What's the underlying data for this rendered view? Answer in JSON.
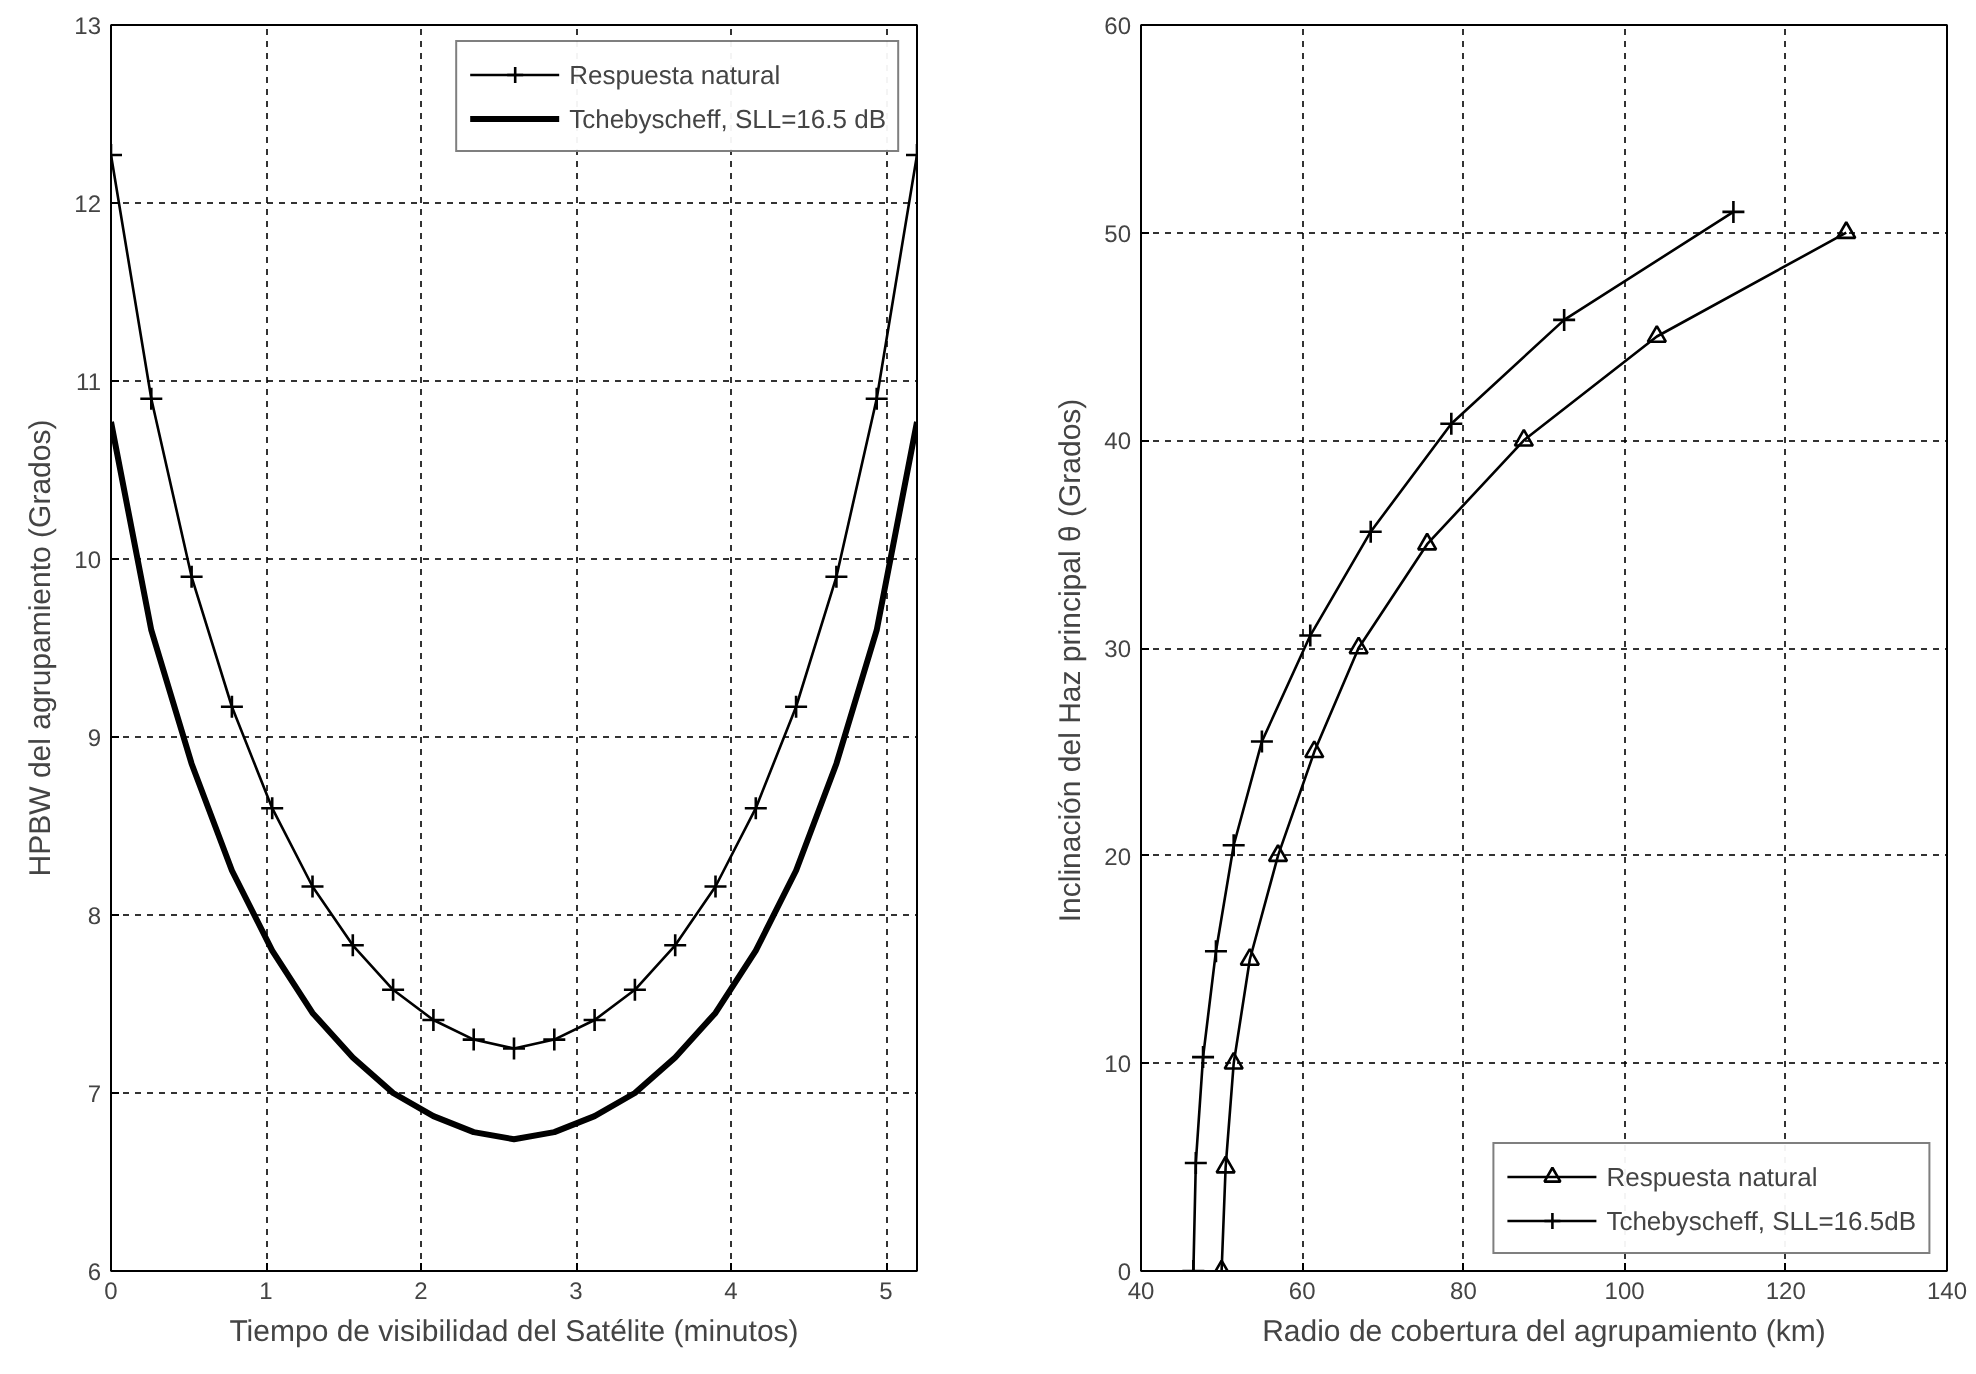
{
  "chart_data": [
    {
      "type": "line",
      "xlabel": "Tiempo de visibilidad del Satélite (minutos)",
      "ylabel": "HPBW del agrupamiento (Grados)",
      "xlim": [
        0,
        5.2
      ],
      "ylim": [
        6,
        13
      ],
      "xticks": [
        0,
        1,
        2,
        3,
        4,
        5
      ],
      "yticks": [
        6,
        7,
        8,
        9,
        10,
        11,
        12,
        13
      ],
      "grid": true,
      "legend": "top right",
      "x": [
        0,
        0.26,
        0.52,
        0.78,
        1.04,
        1.3,
        1.56,
        1.82,
        2.08,
        2.34,
        2.6,
        2.86,
        3.12,
        3.38,
        3.64,
        3.9,
        4.16,
        4.42,
        4.68,
        4.94,
        5.2
      ],
      "series": [
        {
          "name": "Respuesta natural",
          "color": "#000000",
          "marker": "cross",
          "values": [
            12.27,
            10.9,
            9.9,
            9.17,
            8.6,
            8.16,
            7.83,
            7.58,
            7.41,
            7.3,
            7.25,
            7.3,
            7.41,
            7.58,
            7.83,
            8.16,
            8.6,
            9.17,
            9.9,
            10.9,
            12.27
          ]
        },
        {
          "name": "Tchebyscheff, SLL=16.5 dB",
          "color": "#000000",
          "marker": "none",
          "values": [
            10.77,
            9.6,
            8.85,
            8.25,
            7.8,
            7.45,
            7.2,
            7.0,
            6.87,
            6.78,
            6.74,
            6.78,
            6.87,
            7.0,
            7.2,
            7.45,
            7.8,
            8.25,
            8.85,
            9.6,
            10.77
          ]
        }
      ]
    },
    {
      "type": "line",
      "xlabel": "Radio de cobertura del agrupamiento (km)",
      "ylabel": "Inclinación del Haz principal    θ (Grados)",
      "xlim": [
        40,
        140
      ],
      "ylim": [
        0,
        60
      ],
      "xticks": [
        40,
        60,
        80,
        100,
        120,
        140
      ],
      "yticks": [
        0,
        10,
        20,
        30,
        40,
        50,
        60
      ],
      "grid": true,
      "legend": "bottom right",
      "series": [
        {
          "name": "Respuesta natural",
          "color": "#000000",
          "marker": "triangle",
          "x": [
            50,
            50.5,
            51.5,
            53.5,
            57,
            61.5,
            67,
            75.5,
            87.5,
            104,
            127.5
          ],
          "values": [
            0,
            5,
            10,
            15,
            20,
            25,
            30,
            35,
            40,
            45,
            50
          ]
        },
        {
          "name": "Tchebyscheff, SLL=16.5dB",
          "color": "#000000",
          "marker": "cross",
          "x": [
            46.5,
            46.8,
            47.7,
            49.3,
            51.5,
            55,
            61,
            68.5,
            78.5,
            92.5,
            113.5
          ],
          "values": [
            0,
            5.2,
            10.3,
            15.4,
            20.5,
            25.5,
            30.6,
            35.6,
            40.8,
            45.8,
            51
          ]
        }
      ]
    }
  ]
}
